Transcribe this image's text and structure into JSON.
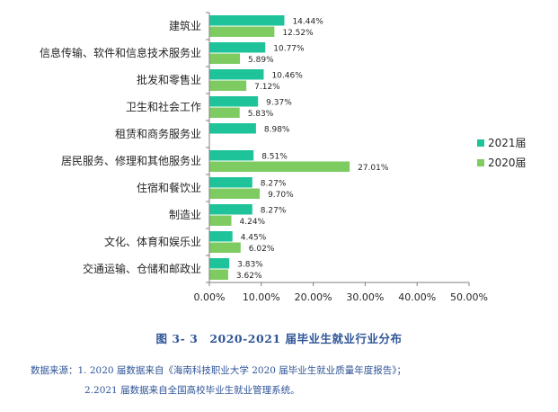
{
  "chart_data": {
    "type": "bar",
    "orientation": "horizontal",
    "categories": [
      "建筑业",
      "信息传输、软件和信息技术服务业",
      "批发和零售业",
      "卫生和社会工作",
      "租赁和商务服务业",
      "居民服务、修理和其他服务业",
      "住宿和餐饮业",
      "制造业",
      "文化、体育和娱乐业",
      "交通运输、仓储和邮政业"
    ],
    "series": [
      {
        "name": "2021届",
        "color": "#1fc39a",
        "values": [
          14.44,
          10.77,
          10.46,
          9.37,
          8.98,
          8.51,
          8.27,
          8.27,
          4.45,
          3.83
        ]
      },
      {
        "name": "2020届",
        "color": "#7ecb62",
        "values": [
          12.52,
          5.89,
          7.12,
          5.83,
          null,
          27.01,
          9.7,
          4.24,
          6.02,
          3.62
        ]
      }
    ],
    "value_labels_2021": [
      "14.44%",
      "10.77%",
      "10.46%",
      "9.37%",
      "8.98%",
      "8.51%",
      "8.27%",
      "8.27%",
      "4.45%",
      "3.83%"
    ],
    "value_labels_2020": [
      "12.52%",
      "5.89%",
      "7.12%",
      "5.83%",
      "",
      "27.01%",
      "9.70%",
      "4.24%",
      "6.02%",
      "3.62%"
    ],
    "xlim": [
      0,
      50
    ],
    "xticks": [
      0,
      10,
      20,
      30,
      40,
      50
    ],
    "xtick_labels": [
      "0.00%",
      "10.00%",
      "20.00%",
      "30.00%",
      "40.00%",
      "50.00%"
    ],
    "grid": false,
    "legend": "right"
  },
  "caption": "图 3- 3　2020-2021 届毕业生就业行业分布",
  "source": {
    "line1": "数据来源：1. 2020 届数据来自《海南科技职业大学 2020 届毕业生就业质量年度报告》；",
    "line2": "2.2021 届数据来自全国高校毕业生就业管理系统。"
  }
}
